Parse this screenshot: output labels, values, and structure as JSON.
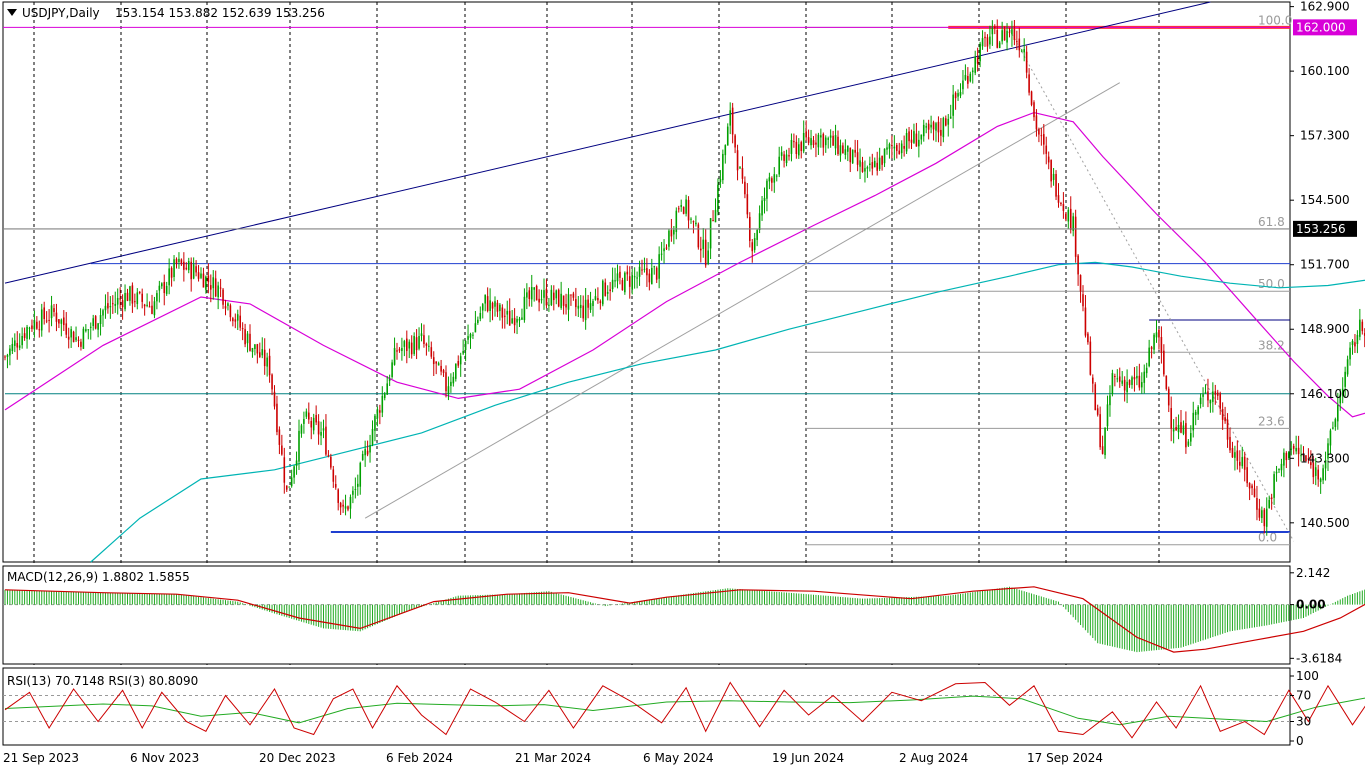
{
  "header": {
    "symbol": "USDJPY,Daily",
    "ohlc": "153.154 153.882 152.639 153.256"
  },
  "price_badges": {
    "current": "153.256",
    "level": "162.000"
  },
  "colors": {
    "bull": "#00a000",
    "bear": "#cc0000",
    "ma_fast": "#d800d8",
    "ma_slow": "#00b4b4",
    "trend": "#000080",
    "level_red": "#ff3030",
    "hline_blue": "#1f3fd0",
    "macd_hist": "#22aa22",
    "macd_signal": "#cc0000",
    "rsi13": "#22aa22",
    "rsi3": "#cc0000"
  },
  "chart_data": [
    {
      "type": "candlestick",
      "name": "USDJPY,Daily",
      "ylim": [
        138.8,
        163.1
      ],
      "yticks": [
        "162.900",
        "160.100",
        "157.300",
        "154.500",
        "151.700",
        "148.900",
        "146.100",
        "143.300",
        "140.500"
      ],
      "x_labels": [
        "21 Sep 2023",
        "6 Nov 2023",
        "20 Dec 2023",
        "6 Feb 2024",
        "21 Mar 2024",
        "6 May 2024",
        "19 Jun 2024",
        "2 Aug 2024",
        "17 Sep 2024"
      ],
      "close_path": [
        [
          0,
          147.7
        ],
        [
          10,
          149.1
        ],
        [
          20,
          149.6
        ],
        [
          30,
          148.4
        ],
        [
          40,
          149.7
        ],
        [
          50,
          150.4
        ],
        [
          60,
          149.9
        ],
        [
          70,
          151.7
        ],
        [
          78,
          151.4
        ],
        [
          88,
          150.6
        ],
        [
          98,
          148.6
        ],
        [
          108,
          147.2
        ],
        [
          115,
          141.8
        ],
        [
          122,
          145.0
        ],
        [
          130,
          144.3
        ],
        [
          138,
          140.9
        ],
        [
          143,
          141.9
        ],
        [
          150,
          144.6
        ],
        [
          160,
          148.0
        ],
        [
          170,
          148.4
        ],
        [
          180,
          146.4
        ],
        [
          188,
          148.2
        ],
        [
          196,
          150.1
        ],
        [
          206,
          149.3
        ],
        [
          216,
          150.4
        ],
        [
          226,
          150.2
        ],
        [
          236,
          149.7
        ],
        [
          246,
          150.8
        ],
        [
          256,
          151.1
        ],
        [
          266,
          151.4
        ],
        [
          276,
          154.6
        ],
        [
          286,
          152.1
        ],
        [
          296,
          158.1
        ],
        [
          305,
          152.5
        ],
        [
          312,
          155.5
        ],
        [
          322,
          156.8
        ],
        [
          332,
          157.3
        ],
        [
          342,
          156.7
        ],
        [
          352,
          155.6
        ],
        [
          362,
          156.8
        ],
        [
          372,
          157.2
        ],
        [
          382,
          157.6
        ],
        [
          392,
          159.8
        ],
        [
          398,
          161.0
        ],
        [
          402,
          161.6
        ],
        [
          406,
          161.5
        ],
        [
          410,
          161.9
        ],
        [
          416,
          161.1
        ],
        [
          420,
          158.1
        ],
        [
          426,
          155.9
        ],
        [
          432,
          154.3
        ],
        [
          436,
          153.4
        ],
        [
          444,
          146.1
        ],
        [
          448,
          143.6
        ],
        [
          452,
          146.8
        ],
        [
          458,
          146.6
        ],
        [
          464,
          146.5
        ],
        [
          470,
          148.9
        ],
        [
          476,
          145.0
        ],
        [
          482,
          144.2
        ],
        [
          488,
          145.8
        ],
        [
          494,
          146.3
        ],
        [
          500,
          144.0
        ],
        [
          506,
          142.7
        ],
        [
          510,
          141.6
        ],
        [
          514,
          140.6
        ],
        [
          518,
          142.3
        ],
        [
          524,
          143.8
        ],
        [
          530,
          143.3
        ],
        [
          536,
          142.6
        ],
        [
          540,
          143.6
        ],
        [
          546,
          146.6
        ],
        [
          552,
          148.8
        ],
        [
          558,
          149.3
        ],
        [
          564,
          149.6
        ],
        [
          570,
          149.1
        ],
        [
          574,
          150.1
        ],
        [
          578,
          151.2
        ],
        [
          582,
          152.5
        ],
        [
          586,
          153.256
        ]
      ],
      "ma_fast": [
        [
          0,
          145.4
        ],
        [
          40,
          148.2
        ],
        [
          80,
          150.3
        ],
        [
          100,
          150.0
        ],
        [
          130,
          148.2
        ],
        [
          160,
          146.6
        ],
        [
          185,
          145.9
        ],
        [
          210,
          146.3
        ],
        [
          240,
          148.0
        ],
        [
          270,
          150.1
        ],
        [
          300,
          151.8
        ],
        [
          330,
          153.4
        ],
        [
          355,
          154.7
        ],
        [
          380,
          156.1
        ],
        [
          405,
          157.7
        ],
        [
          420,
          158.3
        ],
        [
          436,
          157.9
        ],
        [
          448,
          156.4
        ],
        [
          470,
          153.9
        ],
        [
          490,
          151.8
        ],
        [
          510,
          149.4
        ],
        [
          526,
          147.5
        ],
        [
          540,
          146.0
        ],
        [
          550,
          145.1
        ],
        [
          560,
          145.4
        ],
        [
          572,
          145.7
        ],
        [
          586,
          146.0
        ]
      ],
      "ma_slow": [
        [
          35,
          138.8
        ],
        [
          55,
          140.7
        ],
        [
          80,
          142.4
        ],
        [
          110,
          142.8
        ],
        [
          140,
          143.6
        ],
        [
          170,
          144.4
        ],
        [
          200,
          145.6
        ],
        [
          230,
          146.6
        ],
        [
          260,
          147.4
        ],
        [
          290,
          148.0
        ],
        [
          320,
          148.9
        ],
        [
          350,
          149.7
        ],
        [
          380,
          150.5
        ],
        [
          410,
          151.2
        ],
        [
          430,
          151.7
        ],
        [
          445,
          151.8
        ],
        [
          460,
          151.6
        ],
        [
          480,
          151.2
        ],
        [
          500,
          150.9
        ],
        [
          520,
          150.7
        ],
        [
          540,
          150.8
        ],
        [
          560,
          151.1
        ],
        [
          576,
          151.3
        ],
        [
          586,
          151.5
        ]
      ],
      "fibonacci": [
        {
          "label": "100.0",
          "value": 162.0
        },
        {
          "label": "61.8",
          "value": 153.25
        },
        {
          "label": "50.0",
          "value": 150.55
        },
        {
          "label": "38.2",
          "value": 147.9
        },
        {
          "label": "23.6",
          "value": 144.6
        },
        {
          "label": "0.0",
          "value": 139.55
        }
      ],
      "hlines": [
        {
          "value": 162.0,
          "color": "#ff3030",
          "x_range": [
            385,
            640
          ]
        },
        {
          "value": 151.75,
          "color": "#1f3fd0",
          "x_range": [
            35,
            586
          ]
        },
        {
          "value": 149.3,
          "color": "#000080",
          "x_range": [
            467,
            620
          ]
        },
        {
          "value": 146.1,
          "color": "#008080",
          "x_range": [
            0,
            586
          ]
        },
        {
          "value": 140.1,
          "color": "#1f3fd0",
          "x_range": [
            133,
            650
          ]
        }
      ],
      "trendlines": [
        {
          "from": [
            0,
            150.9
          ],
          "to": [
            492,
            163.1
          ],
          "color": "#000080"
        },
        {
          "from": [
            147,
            140.7
          ],
          "to": [
            455,
            159.6
          ],
          "color": "#a0a0a0"
        },
        {
          "from": [
            410,
            161.9
          ],
          "to": [
            526,
            139.7
          ],
          "color": "#a0a0a0",
          "dotted": true
        }
      ]
    },
    {
      "type": "histogram+line",
      "name": "MACD(12,26,9)",
      "values_label": "1.8802 1.5855",
      "yticks": [
        "2.142",
        "0.00",
        "-3.6184"
      ],
      "ylim": [
        -4.0,
        2.6
      ],
      "histogram": [
        [
          0,
          1.0
        ],
        [
          40,
          0.8
        ],
        [
          70,
          0.7
        ],
        [
          95,
          0.2
        ],
        [
          110,
          -0.6
        ],
        [
          130,
          -1.6
        ],
        [
          145,
          -1.8
        ],
        [
          165,
          -0.4
        ],
        [
          185,
          0.6
        ],
        [
          205,
          0.7
        ],
        [
          222,
          0.9
        ],
        [
          245,
          -0.1
        ],
        [
          265,
          0.4
        ],
        [
          295,
          1.1
        ],
        [
          320,
          0.8
        ],
        [
          350,
          0.4
        ],
        [
          385,
          0.6
        ],
        [
          410,
          1.2
        ],
        [
          430,
          0.2
        ],
        [
          446,
          -2.6
        ],
        [
          462,
          -3.2
        ],
        [
          480,
          -2.9
        ],
        [
          500,
          -1.8
        ],
        [
          515,
          -1.4
        ],
        [
          530,
          -0.9
        ],
        [
          548,
          0.6
        ],
        [
          565,
          1.6
        ],
        [
          586,
          1.88
        ]
      ],
      "signal": [
        [
          0,
          1.0
        ],
        [
          40,
          0.8
        ],
        [
          70,
          0.7
        ],
        [
          95,
          0.3
        ],
        [
          120,
          -0.9
        ],
        [
          145,
          -1.6
        ],
        [
          175,
          0.2
        ],
        [
          205,
          0.7
        ],
        [
          230,
          0.8
        ],
        [
          255,
          0.1
        ],
        [
          270,
          0.5
        ],
        [
          300,
          1.0
        ],
        [
          330,
          0.9
        ],
        [
          370,
          0.4
        ],
        [
          395,
          0.9
        ],
        [
          420,
          1.2
        ],
        [
          440,
          0.4
        ],
        [
          462,
          -2.2
        ],
        [
          477,
          -3.2
        ],
        [
          490,
          -3.0
        ],
        [
          510,
          -2.4
        ],
        [
          530,
          -1.8
        ],
        [
          545,
          -0.9
        ],
        [
          565,
          0.9
        ],
        [
          586,
          1.59
        ]
      ]
    },
    {
      "type": "line",
      "name": "RSI",
      "label": "RSI(13) 70.7148  RSI(3) 80.8090",
      "yticks": [
        "100",
        "70",
        "30",
        "0"
      ],
      "ylim": [
        0,
        100
      ],
      "series": [
        {
          "name": "RSI(13)",
          "color": "#22aa22",
          "values": [
            [
              0,
              50
            ],
            [
              40,
              57
            ],
            [
              60,
              54
            ],
            [
              80,
              38
            ],
            [
              100,
              44
            ],
            [
              120,
              28
            ],
            [
              140,
              50
            ],
            [
              160,
              58
            ],
            [
              180,
              56
            ],
            [
              200,
              54
            ],
            [
              220,
              56
            ],
            [
              240,
              47
            ],
            [
              270,
              60
            ],
            [
              295,
              62
            ],
            [
              320,
              60
            ],
            [
              345,
              59
            ],
            [
              370,
              63
            ],
            [
              395,
              69
            ],
            [
              415,
              65
            ],
            [
              438,
              35
            ],
            [
              455,
              25
            ],
            [
              475,
              38
            ],
            [
              495,
              34
            ],
            [
              515,
              30
            ],
            [
              535,
              52
            ],
            [
              555,
              66
            ],
            [
              570,
              68
            ],
            [
              586,
              70.7
            ]
          ]
        },
        {
          "name": "RSI(3)",
          "color": "#cc0000",
          "values": [
            [
              0,
              48
            ],
            [
              10,
              75
            ],
            [
              18,
              20
            ],
            [
              28,
              80
            ],
            [
              38,
              30
            ],
            [
              48,
              78
            ],
            [
              56,
              20
            ],
            [
              64,
              75
            ],
            [
              74,
              30
            ],
            [
              82,
              15
            ],
            [
              90,
              70
            ],
            [
              100,
              25
            ],
            [
              110,
              80
            ],
            [
              118,
              20
            ],
            [
              126,
              10
            ],
            [
              134,
              65
            ],
            [
              142,
              80
            ],
            [
              150,
              20
            ],
            [
              160,
              85
            ],
            [
              170,
              40
            ],
            [
              180,
              10
            ],
            [
              190,
              80
            ],
            [
              200,
              60
            ],
            [
              212,
              30
            ],
            [
              222,
              78
            ],
            [
              232,
              20
            ],
            [
              244,
              85
            ],
            [
              256,
              60
            ],
            [
              268,
              28
            ],
            [
              278,
              82
            ],
            [
              286,
              15
            ],
            [
              296,
              90
            ],
            [
              308,
              22
            ],
            [
              318,
              78
            ],
            [
              328,
              40
            ],
            [
              338,
              70
            ],
            [
              350,
              30
            ],
            [
              362,
              75
            ],
            [
              374,
              62
            ],
            [
              388,
              88
            ],
            [
              400,
              90
            ],
            [
              410,
              55
            ],
            [
              420,
              85
            ],
            [
              430,
              15
            ],
            [
              440,
              10
            ],
            [
              452,
              45
            ],
            [
              460,
              5
            ],
            [
              470,
              60
            ],
            [
              478,
              20
            ],
            [
              488,
              85
            ],
            [
              496,
              15
            ],
            [
              506,
              30
            ],
            [
              514,
              10
            ],
            [
              524,
              78
            ],
            [
              532,
              30
            ],
            [
              540,
              85
            ],
            [
              550,
              25
            ],
            [
              560,
              80
            ],
            [
              568,
              55
            ],
            [
              576,
              85
            ],
            [
              582,
              60
            ],
            [
              586,
              80.8
            ]
          ]
        }
      ],
      "guides": [
        70,
        30
      ]
    }
  ]
}
